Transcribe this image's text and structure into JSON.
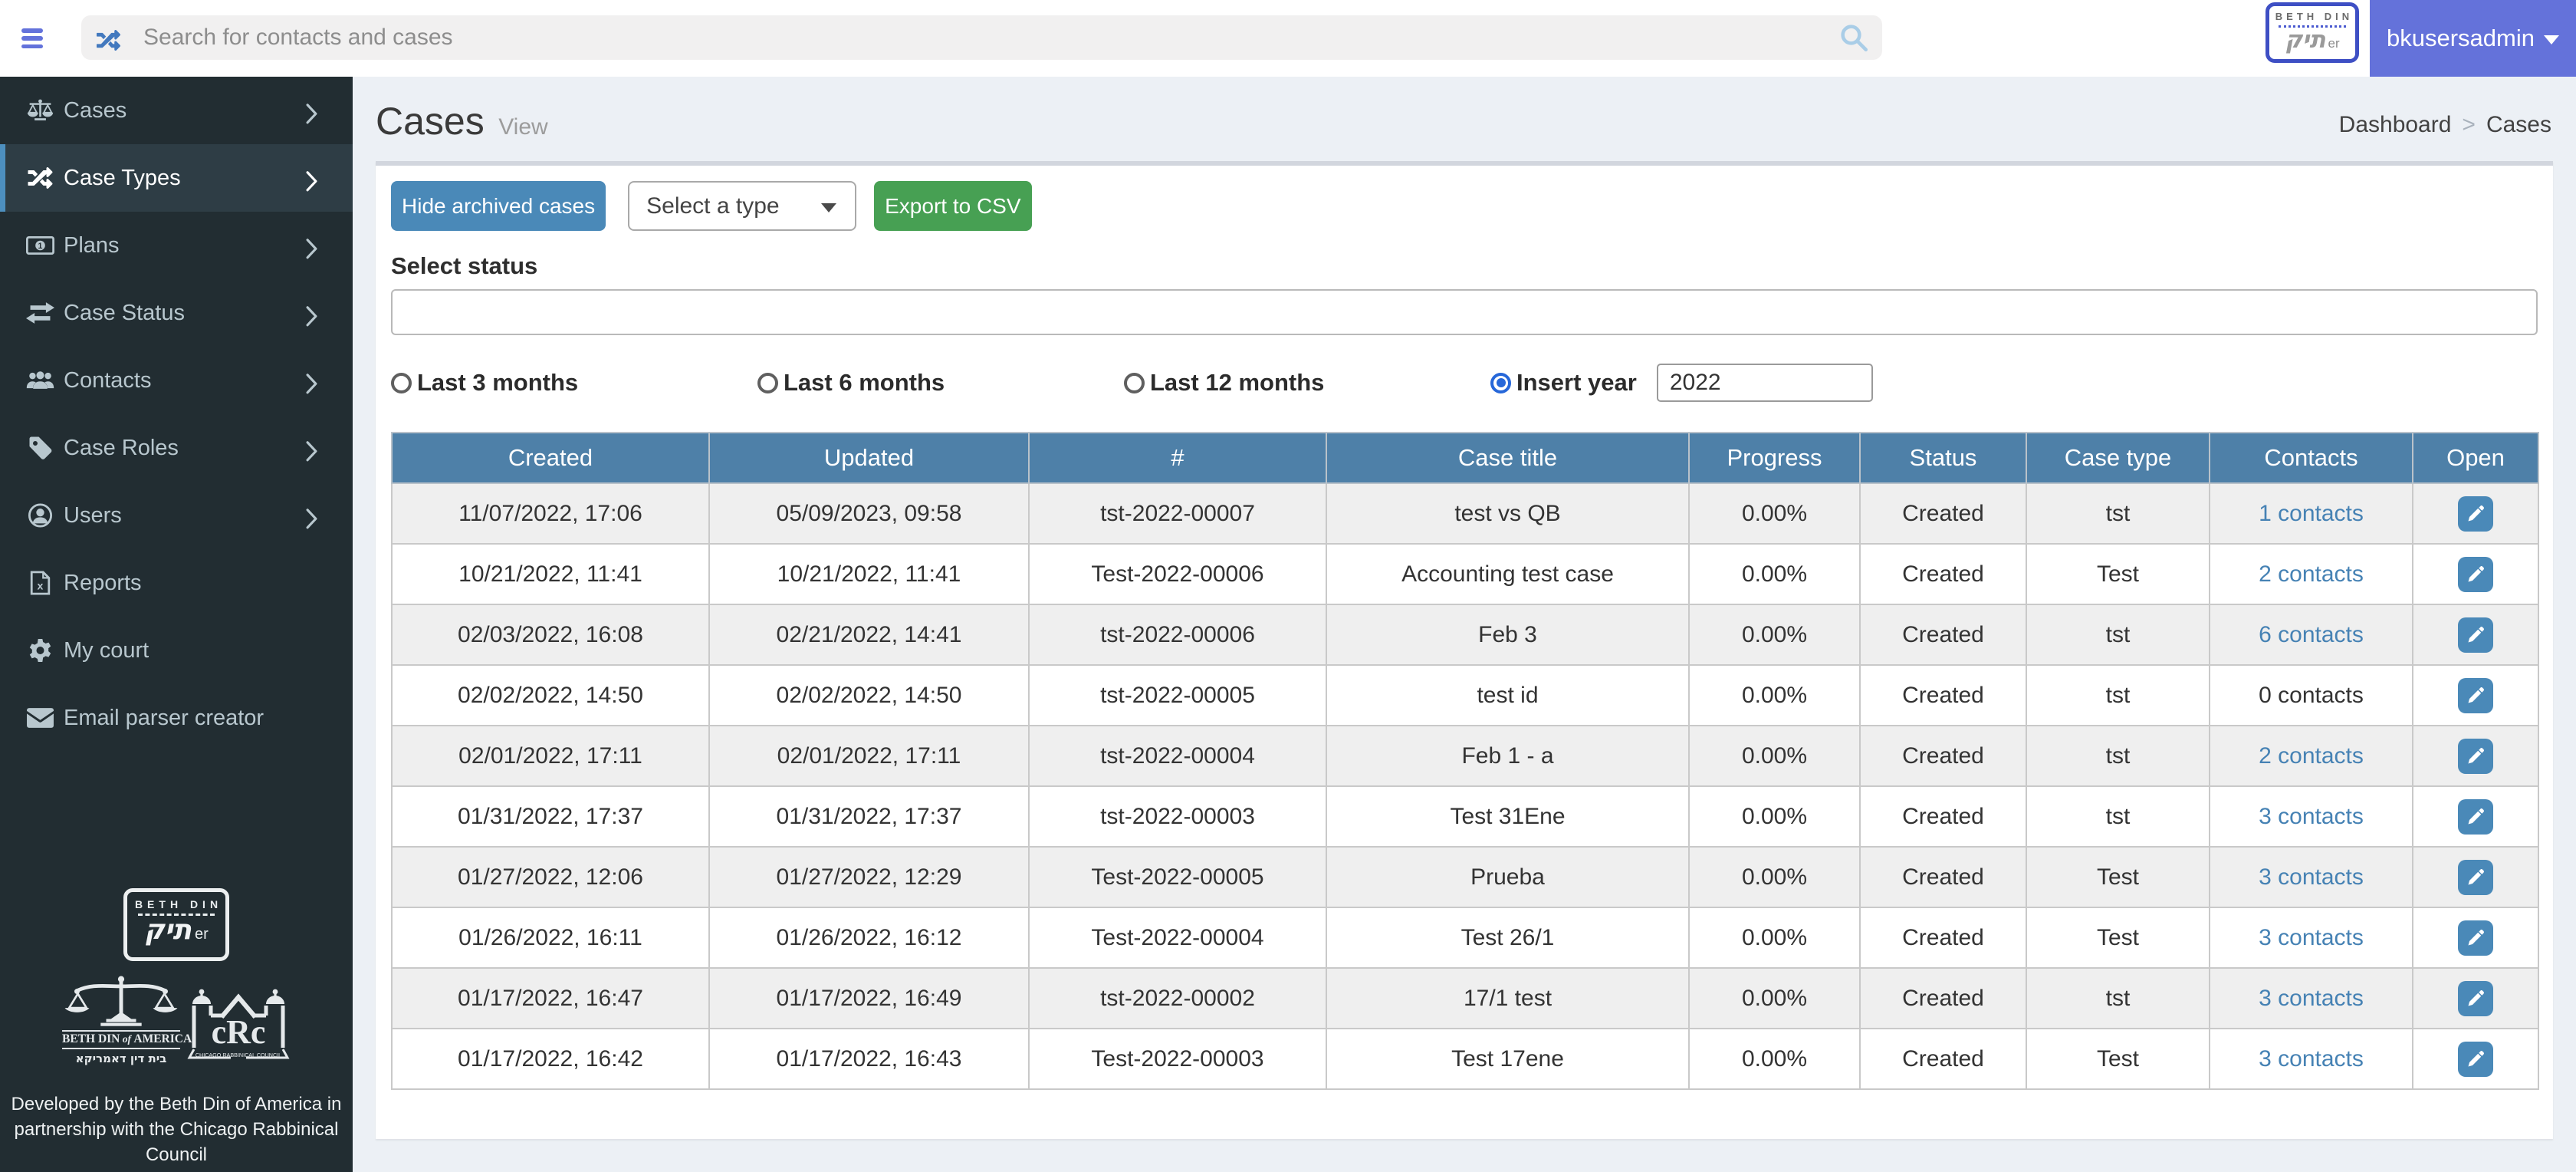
{
  "topbar": {
    "search_placeholder": "Search for contacts and cases",
    "user_name": "bkusersadmin",
    "logo": {
      "top_text": "BETH DIN",
      "script_text": "תיק",
      "suffix": "er"
    }
  },
  "sidebar": {
    "items": [
      {
        "label": "Cases",
        "icon": "scales-icon",
        "chevron": true,
        "active": false
      },
      {
        "label": "Case Types",
        "icon": "shuffle-icon",
        "chevron": true,
        "active": true
      },
      {
        "label": "Plans",
        "icon": "money-bill-icon",
        "chevron": true,
        "active": false
      },
      {
        "label": "Case Status",
        "icon": "exchange-icon",
        "chevron": true,
        "active": false
      },
      {
        "label": "Contacts",
        "icon": "users-icon",
        "chevron": true,
        "active": false
      },
      {
        "label": "Case Roles",
        "icon": "tag-icon",
        "chevron": true,
        "active": false
      },
      {
        "label": "Users",
        "icon": "user-circle-icon",
        "chevron": true,
        "active": false
      },
      {
        "label": "Reports",
        "icon": "file-excel-icon",
        "chevron": false,
        "active": false
      },
      {
        "label": "My court",
        "icon": "gear-icon",
        "chevron": false,
        "active": false
      },
      {
        "label": "Email parser creator",
        "icon": "envelope-icon",
        "chevron": false,
        "active": false
      }
    ],
    "footer": {
      "logo": {
        "top_text": "BETH DIN",
        "script_text": "תיק",
        "suffix": "er"
      },
      "bda_title": "BETH DIN of AMERICA",
      "bda_hebrew": "בית דין דאמריקא",
      "crc_initials": "cRc",
      "crc_caption": "CHICAGO RABBINICAL COUNCIL",
      "credit": "Developed by the Beth Din of America in partnership with the Chicago Rabbinical Council"
    }
  },
  "page": {
    "title": "Cases",
    "subtitle": "View",
    "breadcrumb": {
      "parent": "Dashboard",
      "separator": ">",
      "current": "Cases"
    }
  },
  "toolbar": {
    "hide_archived_label": "Hide archived cases",
    "type_select_value": "Select a type",
    "export_label": "Export to CSV"
  },
  "filters": {
    "status_label": "Select status",
    "status_value": "",
    "radios": [
      {
        "label": "Last 3 months",
        "checked": false
      },
      {
        "label": "Last 6 months",
        "checked": false
      },
      {
        "label": "Last 12 months",
        "checked": false
      },
      {
        "label": "Insert year",
        "checked": true
      }
    ],
    "year_value": "2022"
  },
  "table": {
    "columns": [
      "Created",
      "Updated",
      "#",
      "Case title",
      "Progress",
      "Status",
      "Case type",
      "Contacts",
      "Open"
    ],
    "rows": [
      {
        "created": "11/07/2022, 17:06",
        "updated": "05/09/2023, 09:58",
        "number": "tst-2022-00007",
        "title": "test vs QB",
        "progress": "0.00%",
        "status": "Created",
        "type": "tst",
        "contacts": "1 contacts",
        "contacts_link": true
      },
      {
        "created": "10/21/2022, 11:41",
        "updated": "10/21/2022, 11:41",
        "number": "Test-2022-00006",
        "title": "Accounting test case",
        "progress": "0.00%",
        "status": "Created",
        "type": "Test",
        "contacts": "2 contacts",
        "contacts_link": true
      },
      {
        "created": "02/03/2022, 16:08",
        "updated": "02/21/2022, 14:41",
        "number": "tst-2022-00006",
        "title": "Feb 3",
        "progress": "0.00%",
        "status": "Created",
        "type": "tst",
        "contacts": "6 contacts",
        "contacts_link": true
      },
      {
        "created": "02/02/2022, 14:50",
        "updated": "02/02/2022, 14:50",
        "number": "tst-2022-00005",
        "title": "test id",
        "progress": "0.00%",
        "status": "Created",
        "type": "tst",
        "contacts": "0 contacts",
        "contacts_link": false
      },
      {
        "created": "02/01/2022, 17:11",
        "updated": "02/01/2022, 17:11",
        "number": "tst-2022-00004",
        "title": "Feb 1 - a",
        "progress": "0.00%",
        "status": "Created",
        "type": "tst",
        "contacts": "2 contacts",
        "contacts_link": true
      },
      {
        "created": "01/31/2022, 17:37",
        "updated": "01/31/2022, 17:37",
        "number": "tst-2022-00003",
        "title": "Test 31Ene",
        "progress": "0.00%",
        "status": "Created",
        "type": "tst",
        "contacts": "3 contacts",
        "contacts_link": true
      },
      {
        "created": "01/27/2022, 12:06",
        "updated": "01/27/2022, 12:29",
        "number": "Test-2022-00005",
        "title": "Prueba",
        "progress": "0.00%",
        "status": "Created",
        "type": "Test",
        "contacts": "3 contacts",
        "contacts_link": true
      },
      {
        "created": "01/26/2022, 16:11",
        "updated": "01/26/2022, 16:12",
        "number": "Test-2022-00004",
        "title": "Test 26/1",
        "progress": "0.00%",
        "status": "Created",
        "type": "Test",
        "contacts": "3 contacts",
        "contacts_link": true
      },
      {
        "created": "01/17/2022, 16:47",
        "updated": "01/17/2022, 16:49",
        "number": "tst-2022-00002",
        "title": "17/1 test",
        "progress": "0.00%",
        "status": "Created",
        "type": "tst",
        "contacts": "3 contacts",
        "contacts_link": true
      },
      {
        "created": "01/17/2022, 16:42",
        "updated": "01/17/2022, 16:43",
        "number": "Test-2022-00003",
        "title": "Test 17ene",
        "progress": "0.00%",
        "status": "Created",
        "type": "Test",
        "contacts": "3 contacts",
        "contacts_link": true
      }
    ]
  },
  "colors": {
    "table_header_blue": "#4e80a8",
    "button_blue": "#4a89b8",
    "export_green": "#47a053",
    "user_area_indigo": "#6472da",
    "link_blue": "#4682b4",
    "sidebar_dark": "#222d32",
    "page_background": "#ecf0f5",
    "row_stripe": "#efefef",
    "logo_border_indigo": "#3e4fc4"
  }
}
